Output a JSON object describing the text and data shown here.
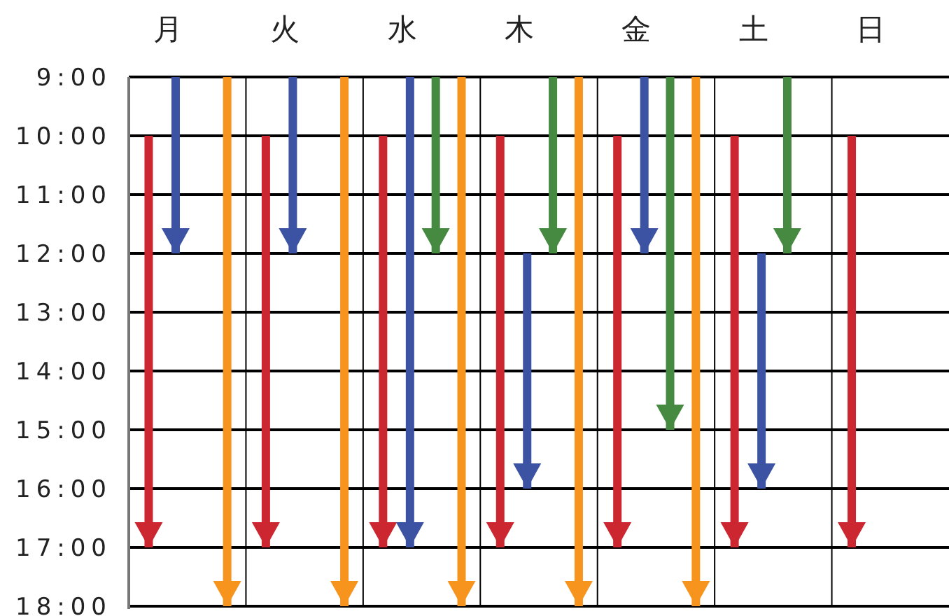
{
  "chart_data": {
    "type": "bar",
    "categories": [
      "月",
      "火",
      "水",
      "木",
      "金",
      "土",
      "日"
    ],
    "series": [
      {
        "color": "#cc2630",
        "base": [
          10,
          10,
          10,
          10,
          10,
          10,
          10
        ],
        "values": [
          7,
          7,
          7,
          7,
          7,
          7,
          7
        ]
      },
      {
        "color": "#3c52a3",
        "base": [
          9,
          9,
          9,
          12,
          9,
          12,
          null
        ],
        "values": [
          3,
          3,
          8,
          4,
          3,
          4,
          null
        ]
      },
      {
        "color": "#468a42",
        "base": [
          null,
          null,
          9,
          9,
          9,
          9,
          null
        ],
        "values": [
          null,
          null,
          3,
          3,
          6,
          3,
          null
        ]
      },
      {
        "color": "#f7941e",
        "base": [
          9,
          9,
          9,
          9,
          9,
          null,
          null
        ],
        "values": [
          9,
          9,
          9,
          9,
          9,
          null,
          null
        ]
      }
    ],
    "ylim": [
      18,
      9
    ],
    "yticks": [
      {
        "value": 9,
        "label": "9:00"
      },
      {
        "value": 10,
        "label": "10:00"
      },
      {
        "value": 11,
        "label": "11:00"
      },
      {
        "value": 12,
        "label": "12:00"
      },
      {
        "value": 13,
        "label": "13:00"
      },
      {
        "value": 14,
        "label": "14:00"
      },
      {
        "value": 15,
        "label": "15:00"
      },
      {
        "value": 16,
        "label": "16:00"
      },
      {
        "value": 17,
        "label": "17:00"
      },
      {
        "value": 18,
        "label": "18:00"
      }
    ],
    "grid": "y"
  }
}
